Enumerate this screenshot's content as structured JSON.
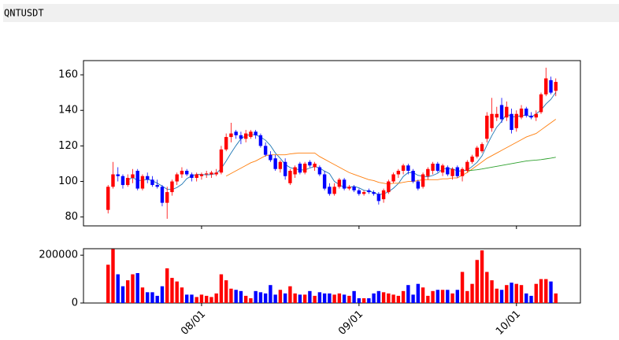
{
  "header": {
    "title": "QNTUSDT"
  },
  "chart_data": [
    {
      "type": "candlestick",
      "up_color": "#ff0000",
      "down_color": "#0000ff",
      "xlim": [
        -5,
        96
      ],
      "ylim": [
        75,
        168
      ],
      "yticks": [
        80,
        100,
        120,
        140,
        160
      ],
      "open": [
        84,
        97,
        104,
        103,
        98,
        102,
        106,
        96,
        103,
        101,
        98,
        97,
        88,
        94,
        100,
        104,
        106,
        104,
        102,
        103,
        104,
        104,
        104,
        105,
        118,
        125,
        128,
        126,
        124,
        125,
        128,
        126,
        120,
        115,
        113,
        107,
        111,
        99,
        104,
        110,
        105,
        111,
        108,
        108,
        104,
        97,
        93,
        97,
        101,
        96,
        97,
        95,
        93,
        95,
        94,
        93,
        90,
        94,
        100,
        104,
        106,
        109,
        106,
        100,
        97,
        103,
        106,
        110,
        105,
        108,
        103,
        108,
        103,
        106,
        111,
        114,
        117,
        124,
        130,
        136,
        143,
        136,
        138,
        130,
        136,
        141,
        137,
        136,
        139,
        149,
        157,
        151
      ],
      "high": [
        98,
        111,
        108,
        104,
        104,
        107,
        107,
        104,
        105,
        103,
        101,
        98,
        97,
        101,
        105,
        108,
        107,
        105,
        105,
        105,
        106,
        106,
        107,
        120,
        127,
        133,
        129,
        128,
        129,
        129,
        129,
        127,
        122,
        117,
        115,
        112,
        113,
        107,
        109,
        111,
        111,
        112,
        111,
        109,
        106,
        99,
        99,
        102,
        102,
        98,
        98,
        96,
        95,
        96,
        95,
        94,
        96,
        101,
        105,
        107,
        110,
        110,
        107,
        101,
        105,
        108,
        111,
        111,
        110,
        109,
        108,
        109,
        108,
        112,
        115,
        120,
        122,
        139,
        147,
        142,
        147,
        145,
        141,
        140,
        143,
        142,
        139,
        140,
        150,
        164,
        159,
        158
      ],
      "low": [
        82,
        96,
        100,
        96,
        97,
        99,
        95,
        95,
        99,
        97,
        96,
        86,
        79,
        92,
        98,
        102,
        103,
        100,
        100,
        101,
        102,
        102,
        103,
        104,
        117,
        122,
        124,
        121,
        122,
        124,
        124,
        119,
        114,
        111,
        106,
        105,
        101,
        98,
        102,
        104,
        104,
        108,
        106,
        103,
        95,
        92,
        92,
        96,
        95,
        95,
        94,
        92,
        92,
        93,
        92,
        87,
        88,
        93,
        99,
        102,
        104,
        104,
        99,
        95,
        96,
        101,
        104,
        105,
        103,
        103,
        101,
        102,
        100,
        105,
        110,
        113,
        116,
        122,
        128,
        134,
        133,
        134,
        127,
        128,
        135,
        136,
        135,
        134,
        138,
        148,
        149,
        148
      ],
      "close": [
        97,
        104,
        103,
        98,
        102,
        104,
        96,
        103,
        101,
        98,
        97,
        88,
        94,
        100,
        104,
        106,
        104,
        102,
        104,
        104,
        104.5,
        105,
        105,
        118,
        125,
        127,
        126,
        124,
        127,
        128,
        126,
        120,
        115,
        112,
        107,
        111,
        103,
        106,
        108,
        105,
        110,
        109,
        110,
        104,
        96,
        93,
        97,
        101,
        96,
        97,
        95,
        93,
        94,
        94,
        93,
        89,
        95,
        100,
        104,
        106,
        109,
        106,
        100,
        96,
        104,
        107,
        110,
        106,
        109,
        104,
        107,
        103,
        107,
        111,
        114,
        119,
        121,
        137,
        138,
        138,
        135,
        142,
        129,
        138,
        141,
        137,
        136,
        138,
        149,
        158,
        150,
        156
      ],
      "lines": [
        {
          "color": "#1f77b4",
          "values": [
            null,
            null,
            null,
            null,
            100.8,
            102.2,
            100.6,
            100.6,
            101.2,
            100.4,
            99,
            97.4,
            95.6,
            95.4,
            96.6,
            98.4,
            101.6,
            103.2,
            104,
            104,
            103.7,
            103.9,
            104.5,
            107.3,
            111.5,
            116,
            120.2,
            124,
            125.8,
            126.4,
            126.2,
            125,
            123.2,
            120.2,
            116,
            113,
            109.6,
            107.8,
            107,
            106.6,
            106.4,
            107.6,
            108.4,
            107.6,
            105.8,
            104.4,
            100,
            98.2,
            96.6,
            96.8,
            97.2,
            96.4,
            95,
            94.6,
            93.8,
            92.6,
            93,
            94.2,
            96.2,
            98.8,
            102.8,
            105,
            105,
            103.4,
            103,
            102.6,
            103.4,
            104.6,
            107.2,
            107.2,
            107.2,
            105.8,
            106,
            106.4,
            108.4,
            110.8,
            114.4,
            120.4,
            125.8,
            130.6,
            133.8,
            138,
            136.4,
            136.4,
            137,
            137.4,
            136.2,
            138,
            140.2,
            143.6,
            146.2,
            150.2
          ]
        },
        {
          "color": "#ff7f0e",
          "values": [
            null,
            null,
            null,
            null,
            null,
            null,
            null,
            null,
            null,
            null,
            null,
            null,
            null,
            null,
            null,
            null,
            null,
            null,
            null,
            null,
            null,
            null,
            null,
            null,
            103,
            104.5,
            106,
            107.5,
            109,
            110.5,
            111.5,
            113,
            114.5,
            115,
            115,
            115,
            115,
            115.5,
            115.8,
            116,
            116,
            116,
            116,
            114,
            112.5,
            111,
            109.5,
            108,
            106.5,
            105,
            104,
            103,
            102,
            101,
            100.5,
            99.5,
            99,
            98.5,
            99,
            99,
            99.5,
            100,
            100,
            100.5,
            101,
            101,
            101,
            101,
            101.5,
            101.5,
            102,
            102,
            103.5,
            105,
            107,
            109,
            111,
            113,
            114.5,
            116,
            117.5,
            119,
            120.5,
            122,
            123.5,
            125,
            126,
            127,
            129,
            131,
            133,
            135
          ]
        },
        {
          "color": "#2ca02c",
          "values": [
            null,
            null,
            null,
            null,
            null,
            null,
            null,
            null,
            null,
            null,
            null,
            null,
            null,
            null,
            null,
            null,
            null,
            null,
            null,
            null,
            null,
            null,
            null,
            null,
            null,
            null,
            null,
            null,
            null,
            null,
            null,
            null,
            null,
            null,
            null,
            null,
            null,
            null,
            null,
            null,
            null,
            null,
            null,
            null,
            null,
            null,
            null,
            null,
            null,
            null,
            null,
            null,
            null,
            null,
            null,
            null,
            null,
            null,
            null,
            null,
            null,
            null,
            null,
            null,
            null,
            null,
            null,
            null,
            null,
            null,
            null,
            null,
            null,
            106,
            106.3,
            106.6,
            107,
            107.5,
            108,
            108.5,
            109,
            109.5,
            110,
            110.5,
            111,
            111.5,
            111.8,
            112,
            112.3,
            112.7,
            113.1,
            113.6
          ]
        }
      ]
    },
    {
      "type": "bar",
      "xlim": [
        -5,
        96
      ],
      "ylim": [
        0,
        227000
      ],
      "yticks": [
        0,
        200000
      ],
      "categories": [
        null,
        null,
        null,
        null,
        null,
        null,
        null,
        null,
        null,
        null,
        null,
        null,
        null,
        null,
        null,
        null,
        null,
        null,
        null,
        "08/01",
        null,
        null,
        null,
        null,
        null,
        null,
        null,
        null,
        null,
        null,
        null,
        null,
        null,
        null,
        null,
        null,
        null,
        null,
        null,
        null,
        null,
        null,
        null,
        null,
        null,
        null,
        null,
        null,
        null,
        null,
        null,
        "09/01",
        null,
        null,
        null,
        null,
        null,
        null,
        null,
        null,
        null,
        null,
        null,
        null,
        null,
        null,
        null,
        null,
        null,
        null,
        null,
        null,
        null,
        null,
        null,
        null,
        null,
        null,
        null,
        null,
        null,
        null,
        null,
        "10/01",
        null,
        null,
        null,
        null,
        null,
        null,
        null,
        null
      ],
      "values": [
        160000,
        225000,
        120000,
        70000,
        95000,
        120000,
        125000,
        65000,
        45000,
        45000,
        30000,
        70000,
        145000,
        105000,
        90000,
        65000,
        35000,
        35000,
        25000,
        35000,
        30000,
        25000,
        40000,
        120000,
        95000,
        60000,
        55000,
        50000,
        30000,
        20000,
        50000,
        45000,
        40000,
        75000,
        35000,
        55000,
        40000,
        70000,
        40000,
        35000,
        35000,
        50000,
        30000,
        45000,
        40000,
        40000,
        35000,
        40000,
        35000,
        30000,
        50000,
        20000,
        20000,
        20000,
        40000,
        50000,
        45000,
        40000,
        35000,
        30000,
        50000,
        75000,
        35000,
        80000,
        65000,
        30000,
        50000,
        55000,
        55000,
        55000,
        40000,
        55000,
        130000,
        50000,
        80000,
        180000,
        220000,
        130000,
        95000,
        60000,
        55000,
        75000,
        85000,
        80000,
        75000,
        40000,
        30000,
        80000,
        100000,
        100000,
        90000,
        40000
      ]
    }
  ]
}
